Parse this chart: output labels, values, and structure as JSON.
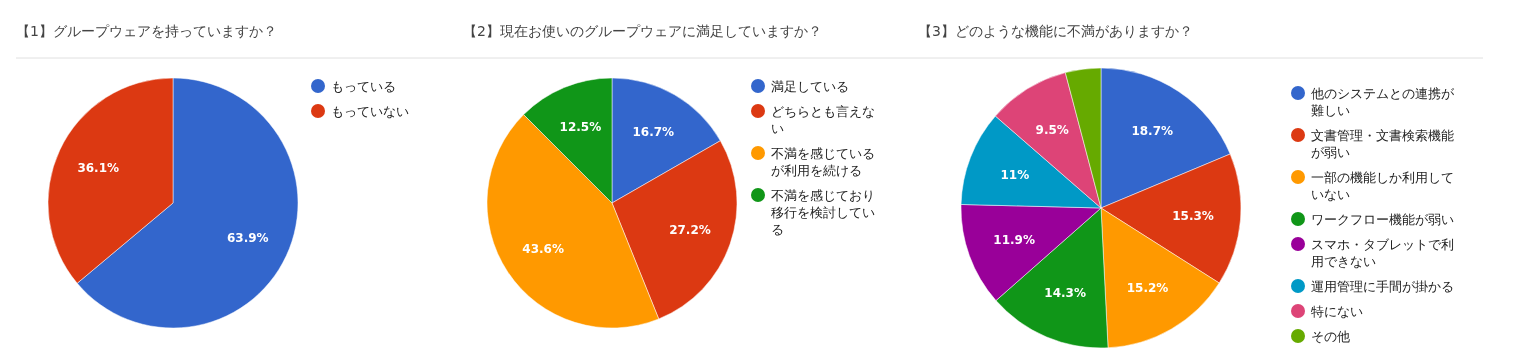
{
  "chart_data": [
    {
      "type": "pie",
      "title": "【1】グループウェアを持っていますか？",
      "categories": [
        "もっている",
        "もっていない"
      ],
      "values": [
        63.9,
        36.1
      ],
      "colors": [
        "#3366cc",
        "#dc3912"
      ],
      "value_labels": [
        "63.9%",
        "36.1%"
      ],
      "legend": "right"
    },
    {
      "type": "pie",
      "title": "【2】現在お使いのグループウェアに満足していますか？",
      "categories": [
        "満足している",
        "どちらとも言えない",
        "不満を感じているが利用を続ける",
        "不満を感じており移行を検討している"
      ],
      "values": [
        16.7,
        27.2,
        43.6,
        12.5
      ],
      "colors": [
        "#3366cc",
        "#dc3912",
        "#ff9900",
        "#109618"
      ],
      "value_labels": [
        "16.7%",
        "27.2%",
        "43.6%",
        "12.5%"
      ],
      "legend": "right"
    },
    {
      "type": "pie",
      "title": "【3】どのような機能に不満がありますか？",
      "categories": [
        "他のシステムとの連携が難しい",
        "文書管理・文書検索機能が弱い",
        "一部の機能しか利用していない",
        "ワークフロー機能が弱い",
        "スマホ・タブレットで利用できない",
        "運用管理に手間が掛かる",
        "特にない",
        "その他"
      ],
      "values": [
        18.7,
        15.3,
        15.2,
        14.3,
        11.9,
        11,
        9.5,
        4.1
      ],
      "colors": [
        "#3366cc",
        "#dc3912",
        "#ff9900",
        "#109618",
        "#990099",
        "#0099c6",
        "#dd4477",
        "#66aa00"
      ],
      "value_labels": [
        "18.7%",
        "15.3%",
        "15.2%",
        "14.3%",
        "11.9%",
        "11%",
        "9.5%",
        null
      ],
      "legend": "right"
    }
  ]
}
